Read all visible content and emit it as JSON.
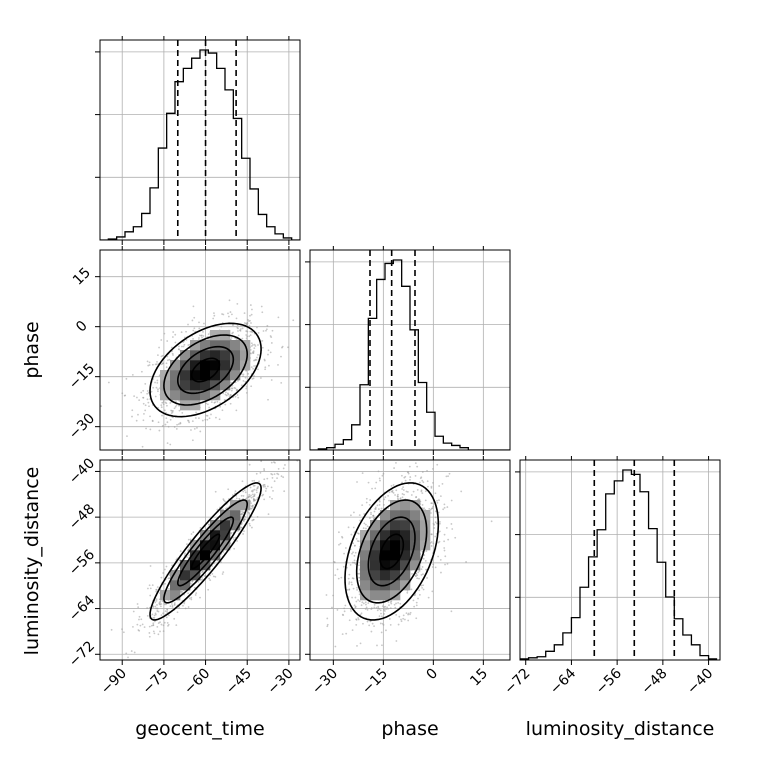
{
  "chart_data": {
    "type": "corner",
    "parameters": [
      "geocent_time",
      "phase",
      "luminosity_distance"
    ],
    "ranges": {
      "geocent_time": [
        -98,
        -26
      ],
      "phase": [
        -37,
        23
      ],
      "luminosity_distance": [
        -73,
        -38
      ]
    },
    "ticks": {
      "geocent_time": [
        -90,
        -75,
        -60,
        -45,
        -30
      ],
      "phase": [
        -30,
        -15,
        0,
        15
      ],
      "luminosity_distance": [
        -72,
        -64,
        -56,
        -48,
        -40
      ]
    },
    "tick_labels": {
      "geocent_time": [
        "−90",
        "−75",
        "−60",
        "−45",
        "−30"
      ],
      "phase": [
        "−30",
        "−15",
        "0",
        "15"
      ],
      "luminosity_distance": [
        "−72",
        "−64",
        "−56",
        "−48",
        "−40"
      ]
    },
    "quantiles": {
      "geocent_time": [
        -70,
        -60,
        -49
      ],
      "phase": [
        -19,
        -12.5,
        -5.5
      ],
      "luminosity_distance": [
        -60,
        -53,
        -46
      ]
    },
    "histograms": {
      "geocent_time": {
        "edges": [
          -98,
          -95,
          -92,
          -89,
          -86,
          -83,
          -80,
          -77,
          -74,
          -71,
          -68,
          -65,
          -62,
          -59,
          -56,
          -53,
          -50,
          -47,
          -44,
          -41,
          -38,
          -35,
          -32,
          -29,
          -26
        ],
        "counts": [
          0,
          1,
          3,
          8,
          13,
          26,
          51,
          90,
          124,
          155,
          168,
          178,
          186,
          183,
          168,
          147,
          119,
          80,
          50,
          25,
          13,
          6,
          2,
          0
        ]
      },
      "phase": {
        "edges": [
          -37,
          -34.5,
          -32,
          -29.5,
          -27,
          -24.5,
          -22,
          -19.5,
          -17,
          -14.5,
          -12,
          -9.5,
          -7,
          -4.5,
          -2,
          0.5,
          3,
          5.5,
          8,
          10.5,
          13,
          15.5,
          18,
          20.5,
          23
        ],
        "counts": [
          0,
          1,
          2,
          5,
          9,
          22,
          57,
          115,
          149,
          163,
          166,
          143,
          105,
          59,
          33,
          12,
          6,
          4,
          2,
          0,
          0,
          0,
          0,
          0
        ]
      },
      "luminosity_distance": {
        "edges": [
          -73,
          -71.5,
          -70,
          -68.5,
          -67,
          -65.5,
          -64,
          -62.5,
          -61,
          -59.5,
          -58,
          -56.5,
          -55,
          -53.5,
          -52,
          -50.5,
          -49,
          -47.5,
          -46,
          -44.5,
          -43,
          -41.5,
          -40,
          -38.5
        ],
        "counts": [
          1,
          2,
          3,
          8,
          14,
          25,
          39,
          67,
          95,
          120,
          153,
          165,
          175,
          171,
          155,
          121,
          90,
          58,
          38,
          23,
          14,
          4,
          1
        ]
      }
    },
    "pairs": [
      {
        "x": "geocent_time",
        "y": "phase",
        "mean": [
          -60,
          -13
        ],
        "sd": [
          10,
          7
        ],
        "rho": 0.45
      },
      {
        "x": "geocent_time",
        "y": "luminosity_distance",
        "mean": [
          -60,
          -54
        ],
        "sd": [
          10,
          6
        ],
        "rho": 0.92
      },
      {
        "x": "phase",
        "y": "luminosity_distance",
        "mean": [
          -12.5,
          -54
        ],
        "sd": [
          7,
          6
        ],
        "rho": 0.4
      }
    ],
    "grid": true
  }
}
